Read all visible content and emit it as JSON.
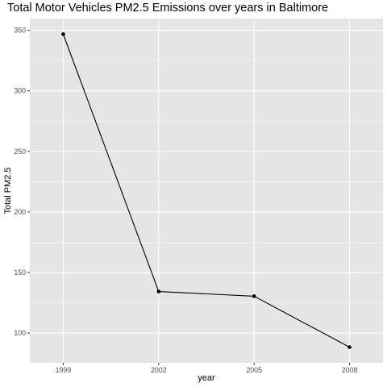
{
  "chart_data": {
    "type": "line",
    "title": "Total Motor Vehicles PM2.5 Emissions over years in Baltimore",
    "xlabel": "year",
    "ylabel": "Total PM2.5",
    "x": [
      1999,
      2002,
      2005,
      2008
    ],
    "series": [
      {
        "values": [
          346.8,
          134.3,
          130.4,
          88.3
        ]
      }
    ],
    "xticks": [
      1999,
      2002,
      2005,
      2008
    ],
    "xtick_labels": [
      "1999",
      "2002",
      "2005",
      "2008"
    ],
    "yticks": [
      100,
      150,
      200,
      250,
      300,
      350
    ],
    "ytick_labels": [
      "100",
      "150",
      "200",
      "250",
      "300",
      "350"
    ],
    "xlim": [
      1997.95,
      2009.05
    ],
    "ylim": [
      75.4,
      359.7
    ],
    "grid": true,
    "colors": {
      "panel_background": "#e5e5e5",
      "grid_major": "#ffffff",
      "line": "#000000",
      "point": "#000000"
    }
  }
}
